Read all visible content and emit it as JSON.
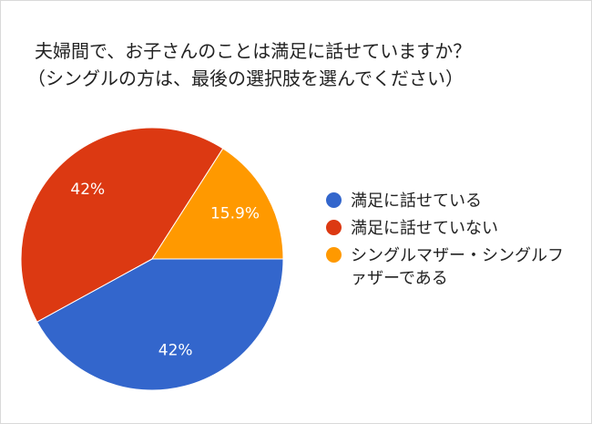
{
  "chart_data": {
    "type": "pie",
    "title_lines": [
      "夫婦間で、お子さんのことは満足に話せていますか？",
      "（シングルの方は、最後の選択肢を選んでください）"
    ],
    "slices": [
      {
        "label": "満足に話せている",
        "value": 42,
        "display": "42%",
        "color": "#3366cc"
      },
      {
        "label": "満足に話せていない",
        "value": 42,
        "display": "42%",
        "color": "#dc3912"
      },
      {
        "label": "シングルマザー・シングルファザーである",
        "value": 15.9,
        "display": "15.9%",
        "color": "#ff9900"
      }
    ],
    "legend_position": "right"
  }
}
